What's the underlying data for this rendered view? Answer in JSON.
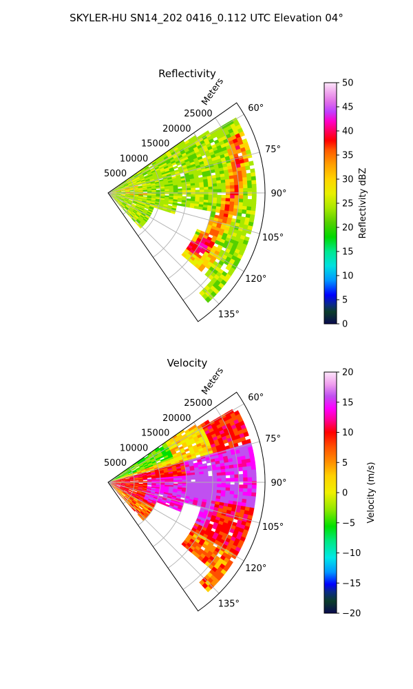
{
  "title": "SKYLER-HU  SN14_202  0416_0.112 UTC Elevation 04°",
  "chart_data": [
    {
      "type": "heatmap",
      "subtype": "polar-sector",
      "title": "Reflectivity",
      "radial_axis_label": "Meters",
      "radial_ticks": [
        "5000",
        "10000",
        "15000",
        "20000",
        "25000"
      ],
      "radial_tick_values": [
        5000,
        10000,
        15000,
        20000,
        25000
      ],
      "r_max": 30000,
      "theta_ticks": [
        "60°",
        "75°",
        "90°",
        "105°",
        "120°",
        "135°"
      ],
      "theta_tick_values": [
        60,
        75,
        90,
        105,
        120,
        135
      ],
      "theta_range": [
        55,
        145
      ],
      "grid": true,
      "colorbar": {
        "label": "Reflectivity dBZ",
        "range": [
          0,
          50
        ],
        "ticks": [
          "0",
          "5",
          "10",
          "15",
          "20",
          "25",
          "30",
          "35",
          "40",
          "45",
          "50"
        ],
        "tick_values": [
          0,
          5,
          10,
          15,
          20,
          25,
          30,
          35,
          40,
          45,
          50
        ]
      }
    },
    {
      "type": "heatmap",
      "subtype": "polar-sector",
      "title": "Velocity",
      "radial_axis_label": "Meters",
      "radial_ticks": [
        "5000",
        "10000",
        "15000",
        "20000",
        "25000"
      ],
      "radial_tick_values": [
        5000,
        10000,
        15000,
        20000,
        25000
      ],
      "r_max": 30000,
      "theta_ticks": [
        "60°",
        "75°",
        "90°",
        "105°",
        "120°",
        "135°"
      ],
      "theta_tick_values": [
        60,
        75,
        90,
        105,
        120,
        135
      ],
      "theta_range": [
        55,
        145
      ],
      "grid": true,
      "colorbar": {
        "label": "Velocity (m/s)",
        "range": [
          -20,
          20
        ],
        "ticks": [
          "−20",
          "−15",
          "−10",
          "−5",
          "0",
          "5",
          "10",
          "15",
          "20"
        ],
        "tick_values": [
          -20,
          -15,
          -10,
          -5,
          0,
          5,
          10,
          15,
          20
        ]
      }
    }
  ]
}
